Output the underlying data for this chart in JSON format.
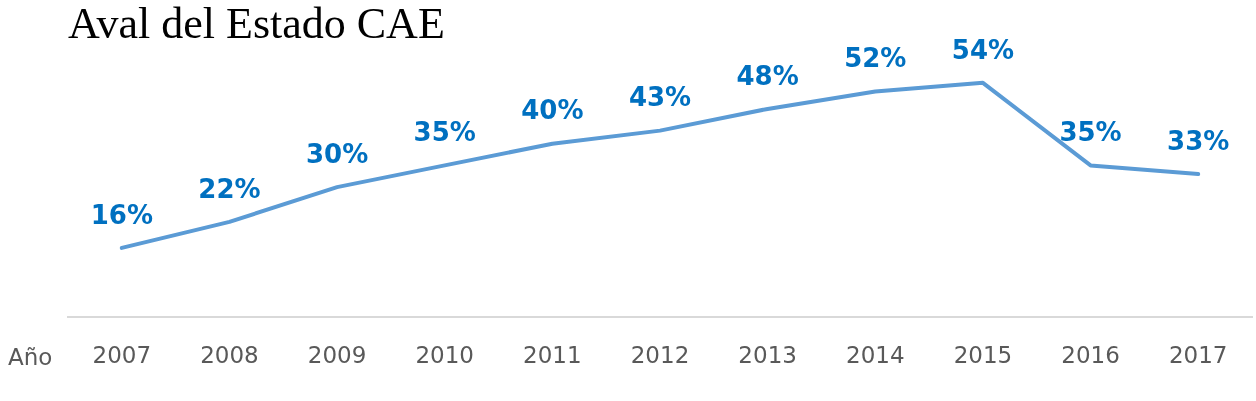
{
  "chart_data": {
    "type": "line",
    "title": "Aval del Estado CAE",
    "xlabel": "Año",
    "categories": [
      "2007",
      "2008",
      "2009",
      "2010",
      "2011",
      "2012",
      "2013",
      "2014",
      "2015",
      "2016",
      "2017"
    ],
    "series": [
      {
        "color": "#5b9bd5",
        "values": [
          16,
          22,
          30,
          35,
          40,
          43,
          48,
          52,
          54,
          35,
          33
        ],
        "value_labels": [
          "16%",
          "22%",
          "30%",
          "35%",
          "40%",
          "43%",
          "48%",
          "52%",
          "54%",
          "35%",
          "33%"
        ]
      }
    ],
    "tick_labels": "x",
    "grid": false,
    "legend": false,
    "marker": "none",
    "line_style": "solid"
  }
}
